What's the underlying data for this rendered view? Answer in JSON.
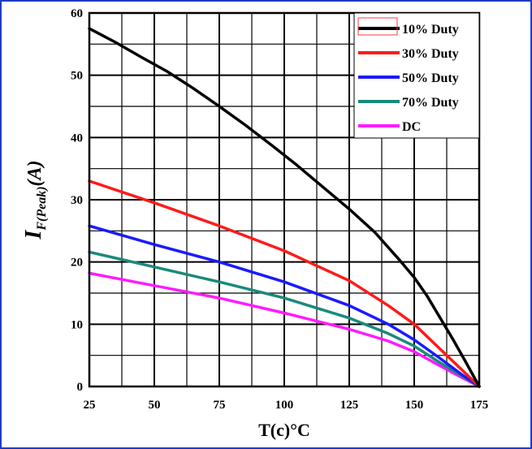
{
  "colors": {
    "border": "#1e3bc8",
    "grid": "#000000"
  },
  "chart_data": {
    "type": "line",
    "title": "",
    "xlabel": "T(c)°C",
    "ylabel_main": "I",
    "ylabel_sub": "F(Peak)",
    "ylabel_tail": "(A)",
    "xlim": [
      25,
      175
    ],
    "ylim": [
      0,
      60
    ],
    "xticks": [
      25,
      50,
      75,
      100,
      125,
      150,
      175
    ],
    "yticks": [
      0,
      10,
      20,
      30,
      40,
      50,
      60
    ],
    "grid": true,
    "legend_position": "top-right",
    "series": [
      {
        "name": "10% Duty",
        "color": "#000000",
        "x": [
          25,
          35,
          45,
          55,
          65,
          75,
          85,
          95,
          105,
          115,
          125,
          135,
          145,
          150,
          155,
          160,
          165,
          170,
          175
        ],
        "y": [
          57.5,
          55.3,
          52.9,
          50.6,
          47.9,
          45,
          42,
          38.8,
          35.5,
          32,
          28.5,
          24.7,
          20,
          17.5,
          14.5,
          11,
          7.5,
          3.8,
          0
        ]
      },
      {
        "name": "30% Duty",
        "color": "#ff1a1a",
        "x": [
          25,
          50,
          75,
          100,
          125,
          140,
          150,
          160,
          168,
          175
        ],
        "y": [
          33,
          29.5,
          25.8,
          21.8,
          17,
          13,
          10,
          6,
          2.8,
          0
        ]
      },
      {
        "name": "50% Duty",
        "color": "#1a1aff",
        "x": [
          25,
          50,
          75,
          100,
          125,
          140,
          150,
          160,
          168,
          175
        ],
        "y": [
          25.8,
          22.8,
          20,
          16.8,
          13,
          10,
          7.5,
          4.5,
          2,
          0
        ]
      },
      {
        "name": "70% Duty",
        "color": "#1a8a7a",
        "x": [
          25,
          50,
          75,
          100,
          125,
          140,
          150,
          160,
          168,
          175
        ],
        "y": [
          21.6,
          19.2,
          16.8,
          14.2,
          11,
          8.5,
          6.5,
          3.8,
          1.8,
          0
        ]
      },
      {
        "name": "DC",
        "color": "#ff1aff",
        "x": [
          25,
          50,
          75,
          100,
          125,
          140,
          150,
          160,
          168,
          175
        ],
        "y": [
          18.2,
          16.2,
          14.2,
          11.8,
          9.2,
          7.3,
          5.6,
          3.3,
          1.5,
          0
        ]
      }
    ]
  }
}
